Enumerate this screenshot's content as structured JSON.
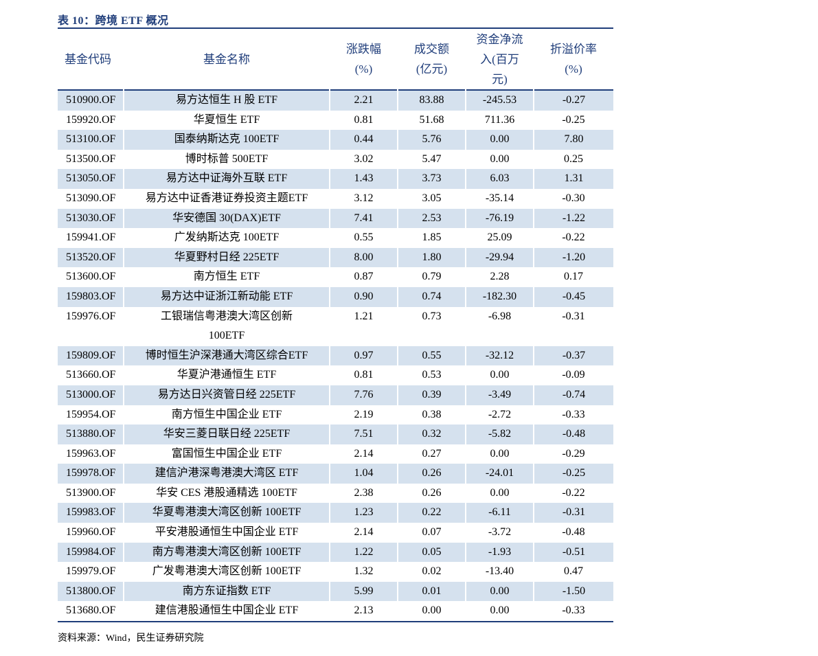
{
  "caption": "表 10：跨境 ETF 概况",
  "headers": {
    "code": "基金代码",
    "name": "基金名称",
    "change": "涨跌幅\n(%)",
    "volume": "成交额\n(亿元)",
    "flow": "资金净流\n入(百万\n元)",
    "premium": "折溢价率\n(%)"
  },
  "rows": [
    {
      "code": "510900.OF",
      "name": "易方达恒生 H 股 ETF",
      "change": "2.21",
      "volume": "83.88",
      "flow": "-245.53",
      "premium": "-0.27"
    },
    {
      "code": "159920.OF",
      "name": "华夏恒生 ETF",
      "change": "0.81",
      "volume": "51.68",
      "flow": "711.36",
      "premium": "-0.25"
    },
    {
      "code": "513100.OF",
      "name": "国泰纳斯达克 100ETF",
      "change": "0.44",
      "volume": "5.76",
      "flow": "0.00",
      "premium": "7.80"
    },
    {
      "code": "513500.OF",
      "name": "博时标普 500ETF",
      "change": "3.02",
      "volume": "5.47",
      "flow": "0.00",
      "premium": "0.25"
    },
    {
      "code": "513050.OF",
      "name": "易方达中证海外互联 ETF",
      "change": "1.43",
      "volume": "3.73",
      "flow": "6.03",
      "premium": "1.31"
    },
    {
      "code": "513090.OF",
      "name": "易方达中证香港证券投资主题ETF",
      "change": "3.12",
      "volume": "3.05",
      "flow": "-35.14",
      "premium": "-0.30"
    },
    {
      "code": "513030.OF",
      "name": "华安德国 30(DAX)ETF",
      "change": "7.41",
      "volume": "2.53",
      "flow": "-76.19",
      "premium": "-1.22"
    },
    {
      "code": "159941.OF",
      "name": "广发纳斯达克 100ETF",
      "change": "0.55",
      "volume": "1.85",
      "flow": "25.09",
      "premium": "-0.22"
    },
    {
      "code": "513520.OF",
      "name": "华夏野村日经 225ETF",
      "change": "8.00",
      "volume": "1.80",
      "flow": "-29.94",
      "premium": "-1.20"
    },
    {
      "code": "513600.OF",
      "name": "南方恒生 ETF",
      "change": "0.87",
      "volume": "0.79",
      "flow": "2.28",
      "premium": "0.17"
    },
    {
      "code": "159803.OF",
      "name": "易方达中证浙江新动能 ETF",
      "change": "0.90",
      "volume": "0.74",
      "flow": "-182.30",
      "premium": "-0.45"
    },
    {
      "code": "159976.OF",
      "name": "工银瑞信粤港澳大湾区创新\n100ETF",
      "change": "1.21",
      "volume": "0.73",
      "flow": "-6.98",
      "premium": "-0.31"
    },
    {
      "code": "159809.OF",
      "name": "博时恒生沪深港通大湾区综合ETF",
      "change": "0.97",
      "volume": "0.55",
      "flow": "-32.12",
      "premium": "-0.37"
    },
    {
      "code": "513660.OF",
      "name": "华夏沪港通恒生 ETF",
      "change": "0.81",
      "volume": "0.53",
      "flow": "0.00",
      "premium": "-0.09"
    },
    {
      "code": "513000.OF",
      "name": "易方达日兴资管日经 225ETF",
      "change": "7.76",
      "volume": "0.39",
      "flow": "-3.49",
      "premium": "-0.74"
    },
    {
      "code": "159954.OF",
      "name": "南方恒生中国企业 ETF",
      "change": "2.19",
      "volume": "0.38",
      "flow": "-2.72",
      "premium": "-0.33"
    },
    {
      "code": "513880.OF",
      "name": "华安三菱日联日经 225ETF",
      "change": "7.51",
      "volume": "0.32",
      "flow": "-5.82",
      "premium": "-0.48"
    },
    {
      "code": "159963.OF",
      "name": "富国恒生中国企业 ETF",
      "change": "2.14",
      "volume": "0.27",
      "flow": "0.00",
      "premium": "-0.29"
    },
    {
      "code": "159978.OF",
      "name": "建信沪港深粤港澳大湾区 ETF",
      "change": "1.04",
      "volume": "0.26",
      "flow": "-24.01",
      "premium": "-0.25"
    },
    {
      "code": "513900.OF",
      "name": "华安 CES 港股通精选 100ETF",
      "change": "2.38",
      "volume": "0.26",
      "flow": "0.00",
      "premium": "-0.22"
    },
    {
      "code": "159983.OF",
      "name": "华夏粤港澳大湾区创新 100ETF",
      "change": "1.23",
      "volume": "0.22",
      "flow": "-6.11",
      "premium": "-0.31"
    },
    {
      "code": "159960.OF",
      "name": "平安港股通恒生中国企业 ETF",
      "change": "2.14",
      "volume": "0.07",
      "flow": "-3.72",
      "premium": "-0.48"
    },
    {
      "code": "159984.OF",
      "name": "南方粤港澳大湾区创新 100ETF",
      "change": "1.22",
      "volume": "0.05",
      "flow": "-1.93",
      "premium": "-0.51"
    },
    {
      "code": "159979.OF",
      "name": "广发粤港澳大湾区创新 100ETF",
      "change": "1.32",
      "volume": "0.02",
      "flow": "-13.40",
      "premium": "0.47"
    },
    {
      "code": "513800.OF",
      "name": "南方东证指数 ETF",
      "change": "5.99",
      "volume": "0.01",
      "flow": "0.00",
      "premium": "-1.50"
    },
    {
      "code": "513680.OF",
      "name": "建信港股通恒生中国企业 ETF",
      "change": "2.13",
      "volume": "0.00",
      "flow": "0.00",
      "premium": "-0.33"
    }
  ],
  "source": "资料来源：Wind，民生证券研究院",
  "colors": {
    "accent": "#1f3d7a",
    "stripe": "#d5e1ee"
  }
}
